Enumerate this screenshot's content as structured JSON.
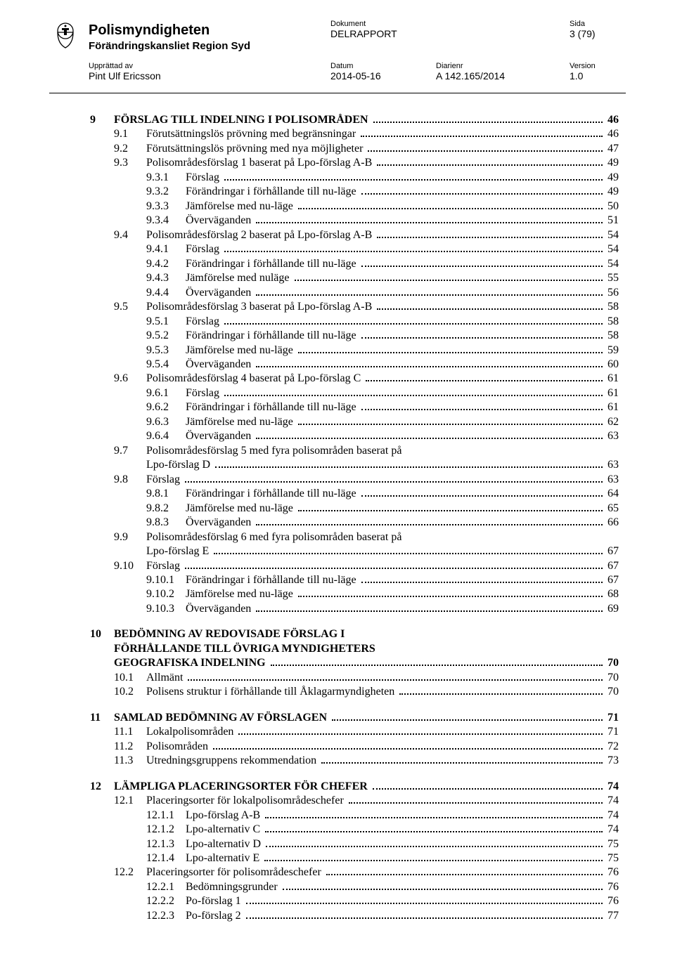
{
  "header": {
    "org_name": "Polismyndigheten",
    "org_sub": "Förändringskansliet Region Syd",
    "doc_label": "Dokument",
    "doc_value": "DELRAPPORT",
    "page_label": "Sida",
    "page_value": "3 (79)",
    "author_label": "Upprättad av",
    "author_value": "Pint Ulf Ericsson",
    "date_label": "Datum",
    "date_value": "2014-05-16",
    "diarie_label": "Diarienr",
    "diarie_value": "A 142.165/2014",
    "version_label": "Version",
    "version_value": "1.0"
  },
  "toc": [
    {
      "level": 1,
      "bold": true,
      "num": "9",
      "title": "FÖRSLAG TILL INDELNING I POLISOMRÅDEN",
      "page": "46"
    },
    {
      "level": 2,
      "num": "9.1",
      "title": "Förutsättningslös prövning med begränsningar",
      "page": "46"
    },
    {
      "level": 2,
      "num": "9.2",
      "title": "Förutsättningslös prövning med nya möjligheter",
      "page": "47"
    },
    {
      "level": 2,
      "num": "9.3",
      "title": "Polisområdesförslag 1 baserat på Lpo-förslag A-B",
      "page": "49"
    },
    {
      "level": 3,
      "num": "9.3.1",
      "title": "Förslag",
      "page": "49"
    },
    {
      "level": 3,
      "num": "9.3.2",
      "title": "Förändringar i förhållande till nu-läge",
      "page": "49"
    },
    {
      "level": 3,
      "num": "9.3.3",
      "title": "Jämförelse med nu-läge",
      "page": "50"
    },
    {
      "level": 3,
      "num": "9.3.4",
      "title": "Överväganden",
      "page": "51"
    },
    {
      "level": 2,
      "num": "9.4",
      "title": "Polisområdesförslag 2 baserat på Lpo-förslag A-B",
      "page": "54"
    },
    {
      "level": 3,
      "num": "9.4.1",
      "title": "Förslag",
      "page": "54"
    },
    {
      "level": 3,
      "num": "9.4.2",
      "title": "Förändringar i förhållande till nu-läge",
      "page": "54"
    },
    {
      "level": 3,
      "num": "9.4.3",
      "title": "Jämförelse med nuläge",
      "page": "55"
    },
    {
      "level": 3,
      "num": "9.4.4",
      "title": "Överväganden",
      "page": "56"
    },
    {
      "level": 2,
      "num": "9.5",
      "title": "Polisområdesförslag 3 baserat på Lpo-förslag A-B",
      "page": "58"
    },
    {
      "level": 3,
      "num": "9.5.1",
      "title": "Förslag",
      "page": "58"
    },
    {
      "level": 3,
      "num": "9.5.2",
      "title": "Förändringar i förhållande till nu-läge",
      "page": "58"
    },
    {
      "level": 3,
      "num": "9.5.3",
      "title": "Jämförelse med nu-läge",
      "page": "59"
    },
    {
      "level": 3,
      "num": "9.5.4",
      "title": "Överväganden",
      "page": "60"
    },
    {
      "level": 2,
      "num": "9.6",
      "title": "Polisområdesförslag 4 baserat på Lpo-förslag C",
      "page": "61"
    },
    {
      "level": 3,
      "num": "9.6.1",
      "title": "Förslag",
      "page": "61"
    },
    {
      "level": 3,
      "num": "9.6.2",
      "title": "Förändringar i förhållande till nu-läge",
      "page": "61"
    },
    {
      "level": 3,
      "num": "9.6.3",
      "title": "Jämförelse med nu-läge",
      "page": "62"
    },
    {
      "level": 3,
      "num": "9.6.4",
      "title": "Överväganden",
      "page": "63"
    },
    {
      "level": 2,
      "num": "9.7",
      "title": "Polisområdesförslag 5 med fyra polisområden baserat på",
      "cont": "Lpo-förslag D",
      "page": "63"
    },
    {
      "level": 2,
      "num": "9.8",
      "title": "Förslag",
      "page": "63"
    },
    {
      "level": 3,
      "num": "9.8.1",
      "title": "Förändringar i förhållande till nu-läge",
      "page": "64"
    },
    {
      "level": 3,
      "num": "9.8.2",
      "title": "Jämförelse med nu-läge",
      "page": "65"
    },
    {
      "level": 3,
      "num": "9.8.3",
      "title": "Överväganden",
      "page": "66"
    },
    {
      "level": 2,
      "num": "9.9",
      "title": "Polisområdesförslag 6 med fyra polisområden baserat på",
      "cont": "Lpo-förslag E",
      "page": "67"
    },
    {
      "level": 2,
      "num": "9.10",
      "title": "Förslag",
      "page": "67"
    },
    {
      "level": 3,
      "num": "9.10.1",
      "title": "Förändringar i förhållande till nu-läge",
      "page": "67"
    },
    {
      "level": 3,
      "num": "9.10.2",
      "title": "Jämförelse med nu-läge",
      "page": "68"
    },
    {
      "level": 3,
      "num": "9.10.3",
      "title": "Överväganden",
      "page": "69"
    },
    {
      "gap": true
    },
    {
      "level": 1,
      "bold": true,
      "num": "10",
      "title": "BEDÖMNING AV REDOVISADE FÖRSLAG I",
      "nopagefill": true
    },
    {
      "level": 1,
      "bold": true,
      "nonum": true,
      "title": "FÖRHÅLLANDE TILL ÖVRIGA MYNDIGHETERS",
      "nopagefill": true
    },
    {
      "level": 1,
      "bold": true,
      "nonum": true,
      "title": "GEOGRAFISKA INDELNING",
      "page": "70"
    },
    {
      "level": 2,
      "num": "10.1",
      "title": "Allmänt",
      "page": "70"
    },
    {
      "level": 2,
      "num": "10.2",
      "title": "Polisens struktur i förhållande till Åklagarmyndigheten",
      "page": "70"
    },
    {
      "gap": true
    },
    {
      "level": 1,
      "bold": true,
      "num": "11",
      "title": "SAMLAD BEDÖMNING AV FÖRSLAGEN",
      "page": "71"
    },
    {
      "level": 2,
      "num": "11.1",
      "title": "Lokalpolisområden",
      "page": "71"
    },
    {
      "level": 2,
      "num": "11.2",
      "title": "Polisområden",
      "page": "72"
    },
    {
      "level": 2,
      "num": "11.3",
      "title": "Utredningsgruppens rekommendation",
      "page": "73"
    },
    {
      "gap": true
    },
    {
      "level": 1,
      "bold": true,
      "num": "12",
      "title": "LÄMPLIGA PLACERINGSORTER FÖR CHEFER",
      "page": "74"
    },
    {
      "level": 2,
      "num": "12.1",
      "title": "Placeringsorter för lokalpolisområdeschefer",
      "page": "74"
    },
    {
      "level": 3,
      "num": "12.1.1",
      "title": "Lpo-förslag A-B",
      "page": "74"
    },
    {
      "level": 3,
      "num": "12.1.2",
      "title": "Lpo-alternativ C",
      "page": "74"
    },
    {
      "level": 3,
      "num": "12.1.3",
      "title": "Lpo-alternativ D",
      "page": "75"
    },
    {
      "level": 3,
      "num": "12.1.4",
      "title": "Lpo-alternativ E",
      "page": "75"
    },
    {
      "level": 2,
      "num": "12.2",
      "title": "Placeringsorter för polisområdeschefer",
      "page": "76"
    },
    {
      "level": 3,
      "num": "12.2.1",
      "title": "Bedömningsgrunder",
      "page": "76"
    },
    {
      "level": 3,
      "num": "12.2.2",
      "title": "Po-förslag 1",
      "page": "76"
    },
    {
      "level": 3,
      "num": "12.2.3",
      "title": "Po-förslag 2",
      "page": "77"
    }
  ]
}
